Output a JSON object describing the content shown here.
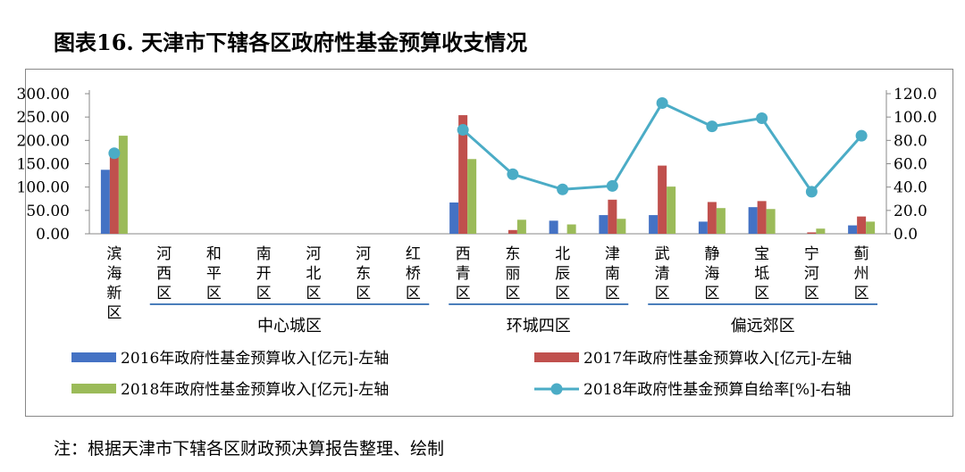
{
  "figure_title": "图表16. 天津市下辖各区政府性基金预算收支情况",
  "note": "注：根据天津市下辖各区财政预决算报告整理、绘制",
  "colors": {
    "s2016": "#4472C4",
    "s2017": "#C0504D",
    "s2018": "#9BBB59",
    "rate": "#4BACC6"
  },
  "chart_data": {
    "type": "bar",
    "categories": [
      "滨海新区",
      "河西区",
      "和平区",
      "南开区",
      "河北区",
      "河东区",
      "红桥区",
      "西青区",
      "东丽区",
      "北辰区",
      "津南区",
      "武清区",
      "静海区",
      "宝坻区",
      "宁河区",
      "蓟州区"
    ],
    "groups": [
      {
        "label": "中心城区"
      },
      {
        "label": "环城四区"
      },
      {
        "label": "偏远郊区"
      }
    ],
    "y_left": {
      "ticks": [
        "300.00",
        "250.00",
        "200.00",
        "150.00",
        "100.00",
        "50.00",
        "0.00"
      ],
      "min": 0,
      "max": 300
    },
    "y_right": {
      "ticks": [
        "120.0",
        "100.0",
        "80.0",
        "60.0",
        "40.0",
        "20.0",
        "0.0"
      ],
      "min": 0,
      "max": 120
    },
    "series": [
      {
        "name": "2016年政府性基金预算收入[亿元]-左轴",
        "axis": "left",
        "type": "bar",
        "values": [
          137,
          null,
          null,
          null,
          null,
          null,
          null,
          67,
          null,
          28,
          40,
          40,
          26,
          57,
          null,
          18
        ]
      },
      {
        "name": "2017年政府性基金预算收入[亿元]-左轴",
        "axis": "left",
        "type": "bar",
        "values": [
          175,
          null,
          null,
          null,
          null,
          null,
          null,
          254,
          8,
          null,
          73,
          146,
          68,
          70,
          3,
          37
        ]
      },
      {
        "name": "2018年政府性基金预算收入[亿元]-左轴",
        "axis": "left",
        "type": "bar",
        "values": [
          210,
          null,
          null,
          null,
          null,
          null,
          null,
          160,
          30,
          20,
          32,
          101,
          55,
          53,
          11,
          26
        ]
      },
      {
        "name": "2018年政府性基金预算自给率[%]-右轴",
        "axis": "right",
        "type": "line",
        "values": [
          69,
          null,
          null,
          null,
          null,
          null,
          null,
          89,
          51,
          38,
          41,
          112,
          92,
          99,
          36,
          84
        ]
      }
    ]
  }
}
